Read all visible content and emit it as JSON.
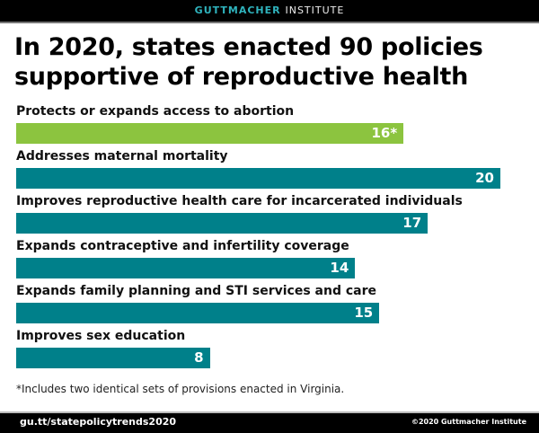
{
  "header": {
    "brand_bold": "GUTTMACHER",
    "brand_light": "INSTITUTE"
  },
  "chart_data": {
    "type": "bar",
    "orientation": "horizontal",
    "title": "In 2020, states enacted 90 policies supportive of reproductive health",
    "categories": [
      "Protects or expands access to abortion",
      "Addresses maternal mortality",
      "Improves reproductive health care for incarcerated individuals",
      "Expands contraceptive and infertility coverage",
      "Expands family planning and STI services and care",
      "Improves sex education"
    ],
    "values": [
      16,
      20,
      17,
      14,
      15,
      8
    ],
    "value_labels": [
      "16*",
      "20",
      "17",
      "14",
      "15",
      "8"
    ],
    "colors": [
      "#8cc43f",
      "#00808a",
      "#00808a",
      "#00808a",
      "#00808a",
      "#00808a"
    ],
    "xlim": [
      0,
      20
    ],
    "grid": false,
    "legend": "none"
  },
  "footnote": "*Includes two identical sets of provisions enacted in Virginia.",
  "footer": {
    "url": "gu.tt/statepolicytrends2020",
    "copyright": "©2020 Guttmacher Institute"
  }
}
